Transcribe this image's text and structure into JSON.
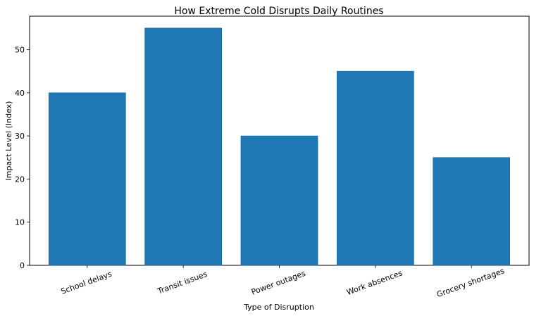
{
  "chart_data": {
    "type": "bar",
    "title": "How Extreme Cold Disrupts Daily Routines",
    "xlabel": "Type of Disruption",
    "ylabel": "Impact Level (Index)",
    "categories": [
      "School delays",
      "Transit issues",
      "Power outages",
      "Work absences",
      "Grocery shortages"
    ],
    "values": [
      40,
      55,
      30,
      45,
      25
    ],
    "ylim": [
      0,
      57.75
    ],
    "yticks": [
      0,
      10,
      20,
      30,
      40,
      50
    ],
    "bar_color": "#1f77b4",
    "grid": false,
    "legend": "none"
  }
}
